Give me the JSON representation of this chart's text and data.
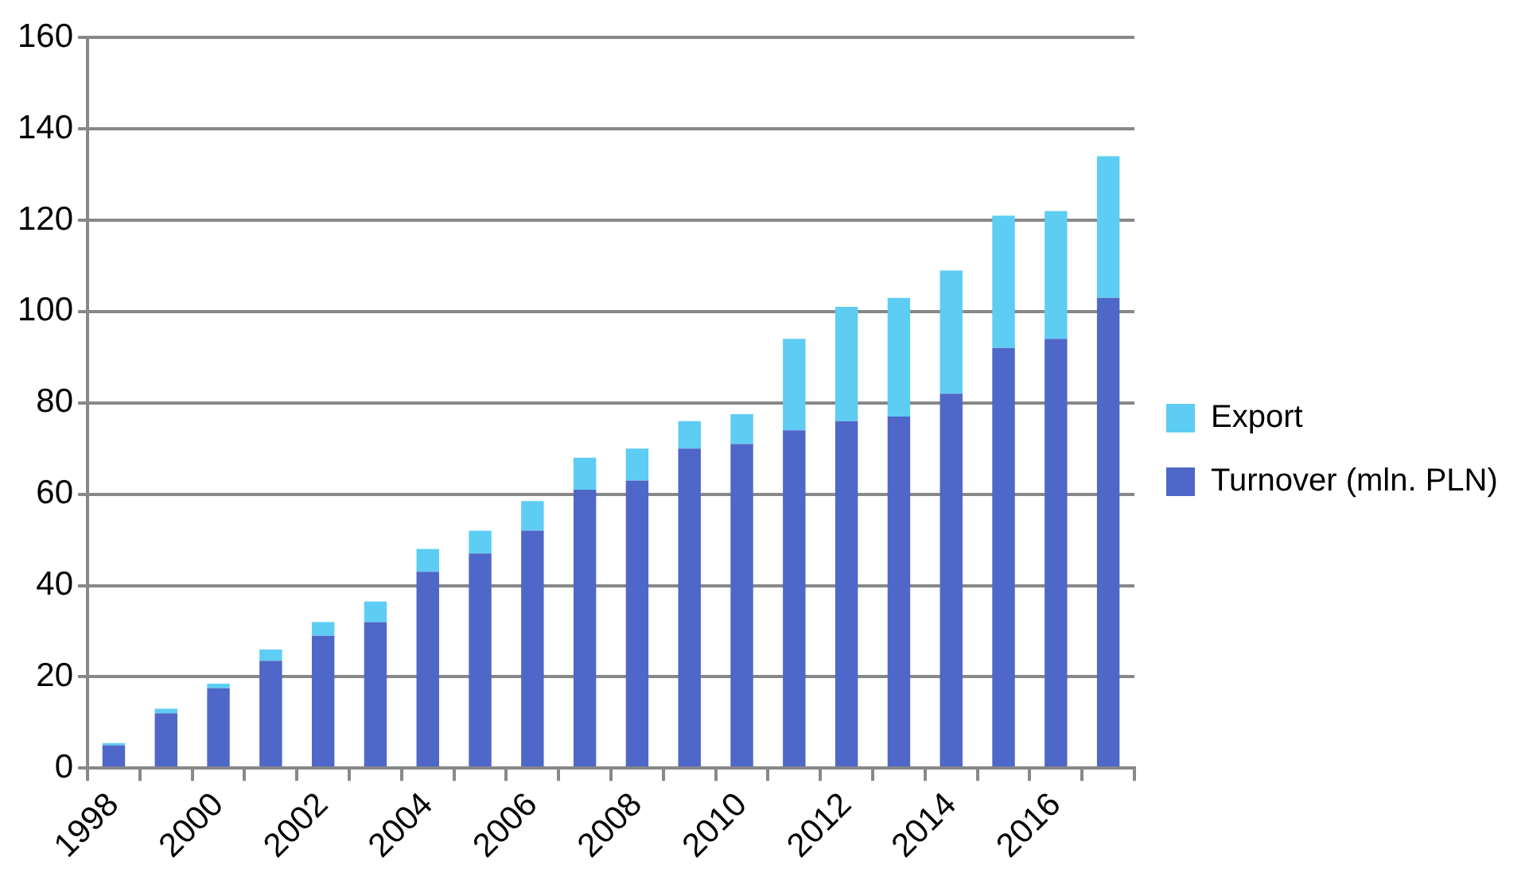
{
  "chart_data": {
    "type": "bar",
    "stacked": true,
    "categories": [
      "1998",
      null,
      "2000",
      null,
      "2002",
      null,
      "2004",
      null,
      "2006",
      null,
      "2008",
      null,
      "2010",
      null,
      "2012",
      null,
      "2014",
      null,
      "2016",
      null
    ],
    "series": [
      {
        "name": "Turnover (mln. PLN)",
        "color": "#4f67c8",
        "values": [
          5,
          12,
          17.5,
          23.5,
          29,
          32,
          43,
          47,
          52,
          61,
          63,
          70,
          71,
          74,
          76,
          77,
          82,
          92,
          94,
          103
        ]
      },
      {
        "name": "Export",
        "color": "#5ecdf3",
        "values": [
          0.5,
          1,
          1,
          2.5,
          3,
          4.5,
          5,
          5,
          6.5,
          7,
          7,
          6,
          6.5,
          20,
          25,
          26,
          27,
          29,
          28,
          31
        ]
      }
    ],
    "ylim": [
      0,
      160
    ],
    "yticks": [
      0,
      20,
      40,
      60,
      80,
      100,
      120,
      140,
      160
    ],
    "grid": "y",
    "legend": "right"
  }
}
